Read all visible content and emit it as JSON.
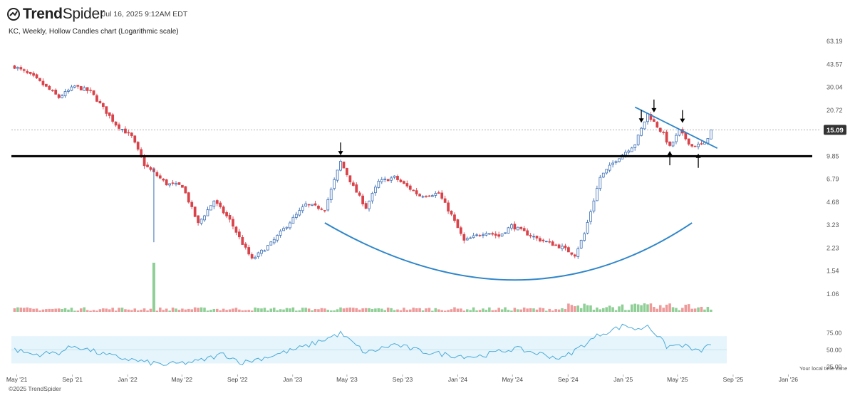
{
  "header": {
    "brand_bold": "Trend",
    "brand_thin": "Spider",
    "timestamp": "Jul 16, 2025 9:12AM EDT",
    "subtitle": "KC, Weekly, Hollow Candles chart (Logarithmic scale)"
  },
  "footer": {
    "copyright": "©2025 TrendSpider",
    "timezone_note": "Your local time zone"
  },
  "colors": {
    "up": "#3d6fb6",
    "down": "#d9434a",
    "vol_up": "#8fcf96",
    "vol_down": "#ee9a9a",
    "rsi_line": "#4aaad8",
    "rsi_band": "#e6f5fb",
    "annotation_blue": "#2f86c9",
    "support_line": "#000000",
    "last_price_badge": "#333333"
  },
  "chart_data": {
    "type": "candlestick",
    "symbol": "KC",
    "interval": "Weekly",
    "scale": "log",
    "x_ticks": [
      "May '21",
      "Sep '21",
      "Jan '22",
      "May '22",
      "Sep '22",
      "Jan '23",
      "May '23",
      "Sep '23",
      "Jan '24",
      "May '24",
      "Sep '24",
      "Jan '25",
      "May '25",
      "Sep '25",
      "Jan '26"
    ],
    "y_ticks": [
      "63.19",
      "43.57",
      "30.04",
      "20.72",
      "15.09",
      "9.85",
      "6.79",
      "4.68",
      "3.23",
      "2.23",
      "1.54",
      "1.06"
    ],
    "ylim": [
      1.0,
      63.19
    ],
    "last_price": "15.09",
    "support_level": 9.85,
    "rsi_ticks": [
      "75.00",
      "50.00",
      "25.00"
    ],
    "rsi_band": [
      30,
      70
    ],
    "price_keypoints": [
      [
        "2021-04-26",
        42.0
      ],
      [
        "2021-06-07",
        35.5
      ],
      [
        "2021-08-02",
        25.5
      ],
      [
        "2021-09-06",
        30.5
      ],
      [
        "2021-10-11",
        28.0
      ],
      [
        "2021-12-06",
        16.5
      ],
      [
        "2022-01-10",
        13.5
      ],
      [
        "2022-02-07",
        8.6
      ],
      [
        "2022-03-28",
        6.3
      ],
      [
        "2022-05-02",
        6.1
      ],
      [
        "2022-06-06",
        3.3
      ],
      [
        "2022-07-11",
        4.8
      ],
      [
        "2022-08-15",
        3.5
      ],
      [
        "2022-09-12",
        2.4
      ],
      [
        "2022-10-03",
        1.85
      ],
      [
        "2022-11-14",
        2.4
      ],
      [
        "2022-12-26",
        3.4
      ],
      [
        "2023-01-30",
        4.5
      ],
      [
        "2023-03-13",
        4.2
      ],
      [
        "2023-04-17",
        9.0
      ],
      [
        "2023-05-15",
        6.0
      ],
      [
        "2023-06-12",
        4.3
      ],
      [
        "2023-07-10",
        6.5
      ],
      [
        "2023-08-14",
        7.0
      ],
      [
        "2023-10-09",
        5.2
      ],
      [
        "2023-11-20",
        5.4
      ],
      [
        "2023-12-18",
        3.8
      ],
      [
        "2024-01-15",
        2.5
      ],
      [
        "2024-03-04",
        2.9
      ],
      [
        "2024-04-01",
        2.7
      ],
      [
        "2024-04-29",
        3.2
      ],
      [
        "2024-06-24",
        2.6
      ],
      [
        "2024-08-19",
        2.25
      ],
      [
        "2024-09-16",
        2.0
      ],
      [
        "2024-10-07",
        2.8
      ],
      [
        "2024-11-11",
        7.0
      ],
      [
        "2024-12-16",
        9.3
      ],
      [
        "2025-01-27",
        12.0
      ],
      [
        "2025-02-24",
        19.5
      ],
      [
        "2025-03-31",
        14.0
      ],
      [
        "2025-04-14",
        11.4
      ],
      [
        "2025-05-05",
        14.8
      ],
      [
        "2025-06-02",
        11.6
      ],
      [
        "2025-06-30",
        12.0
      ],
      [
        "2025-07-14",
        15.09
      ]
    ],
    "volume_spike": {
      "date": "2022-02-28",
      "value_relative": 1.0
    },
    "rsi_keypoints": [
      [
        "2021-04-26",
        50
      ],
      [
        "2021-06-07",
        43
      ],
      [
        "2021-08-02",
        46
      ],
      [
        "2021-09-06",
        56
      ],
      [
        "2021-11-15",
        42
      ],
      [
        "2022-02-07",
        32
      ],
      [
        "2022-03-28",
        28
      ],
      [
        "2022-06-06",
        33
      ],
      [
        "2022-08-01",
        44
      ],
      [
        "2022-09-12",
        31
      ],
      [
        "2022-11-14",
        41
      ],
      [
        "2023-01-30",
        55
      ],
      [
        "2023-04-17",
        74
      ],
      [
        "2023-06-12",
        45
      ],
      [
        "2023-08-14",
        58
      ],
      [
        "2023-10-09",
        48
      ],
      [
        "2023-12-18",
        42
      ],
      [
        "2024-02-12",
        40
      ],
      [
        "2024-05-06",
        52
      ],
      [
        "2024-08-19",
        37
      ],
      [
        "2024-11-11",
        73
      ],
      [
        "2025-01-06",
        86
      ],
      [
        "2025-02-03",
        79
      ],
      [
        "2025-02-24",
        87
      ],
      [
        "2025-04-07",
        55
      ],
      [
        "2025-05-12",
        57
      ],
      [
        "2025-06-16",
        47
      ],
      [
        "2025-07-14",
        58
      ]
    ],
    "annotations": {
      "down_arrows": [
        "2023-04-17",
        "2025-02-10",
        "2025-03-10",
        "2025-05-12"
      ],
      "up_arrows": [
        "2025-04-14",
        "2025-06-16"
      ],
      "rounded_bottom_curve": {
        "start": [
          "2023-03-13",
          3.35
        ],
        "bottom": [
          "2024-05-06",
          1.33
        ],
        "end": [
          "2025-06-02",
          3.35
        ]
      },
      "descending_trendline": {
        "start": [
          "2025-01-27",
          21.8
        ],
        "end": [
          "2025-07-28",
          11.2
        ]
      }
    }
  }
}
